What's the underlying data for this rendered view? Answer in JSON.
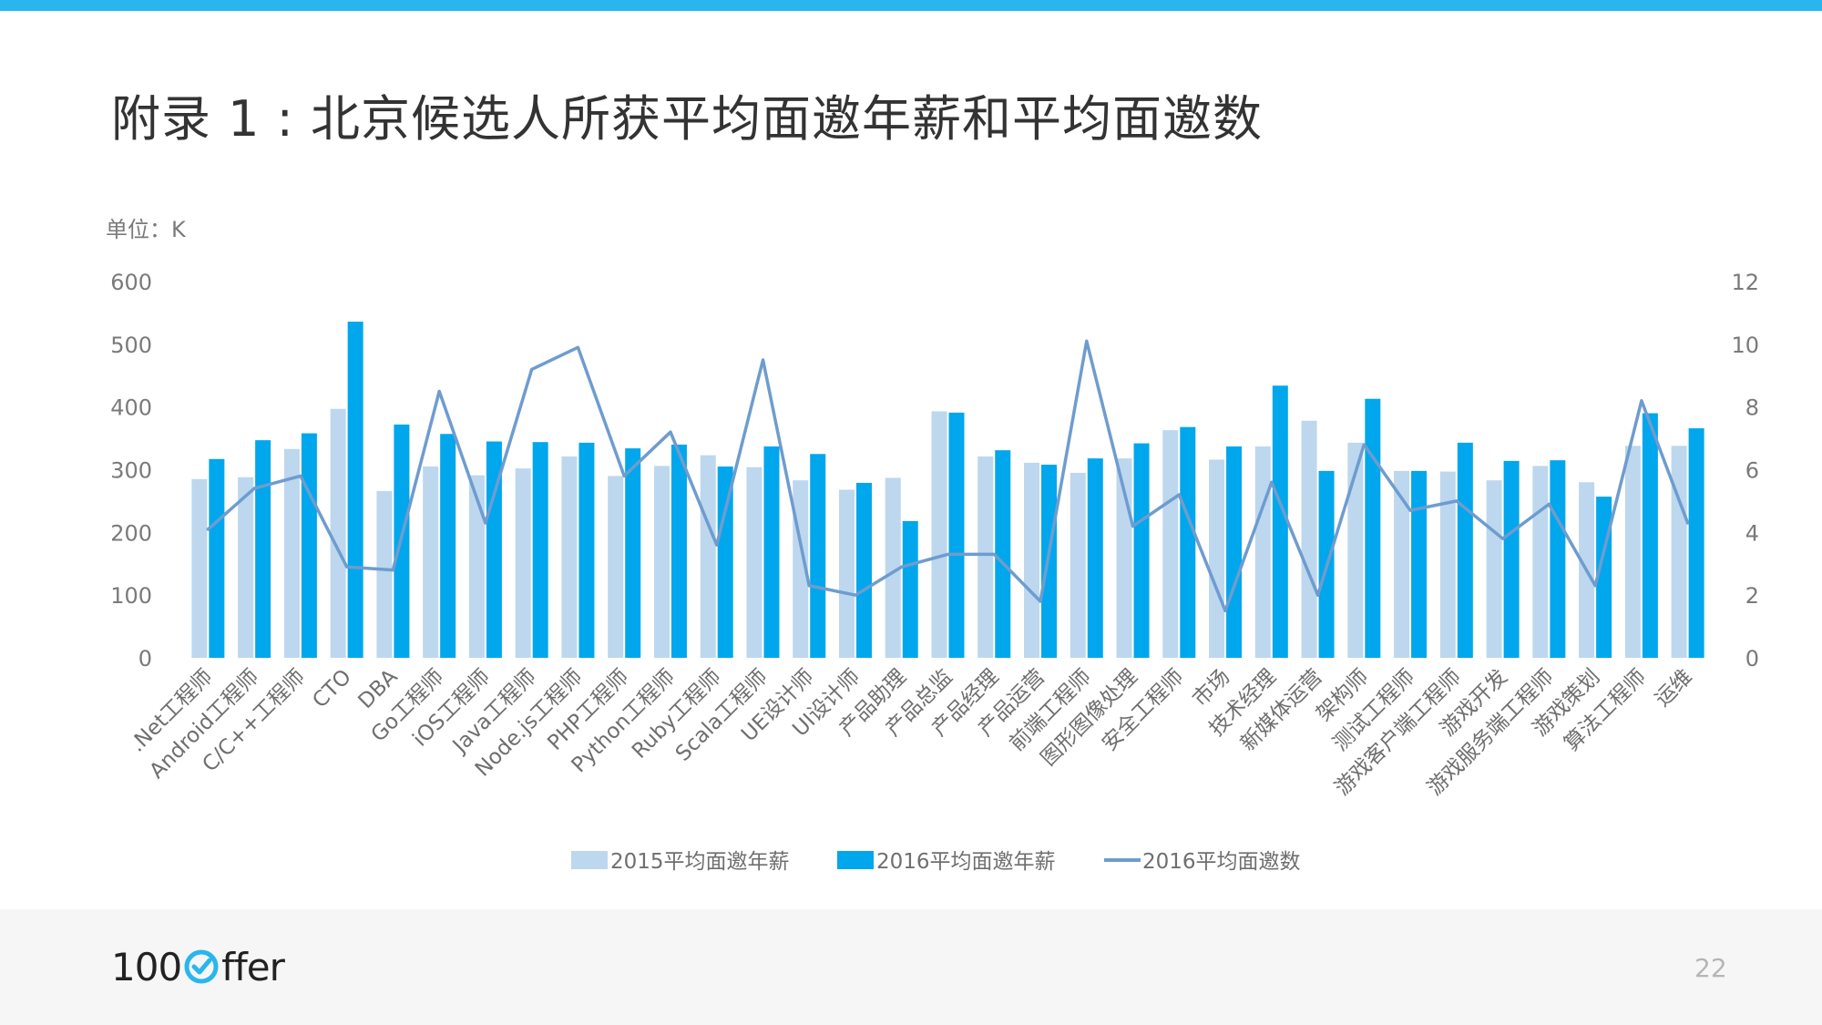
{
  "page": {
    "title": "附录 1 : 北京候选人所获平均面邀年薪和平均面邀数",
    "unit_label": "单位：K",
    "page_number": "22"
  },
  "logo": {
    "prefix": "100",
    "suffix": "ffer"
  },
  "colors": {
    "top_bar": "#29b6ee",
    "salary_2015": "#bdd7ee",
    "salary_2016": "#00a7ec",
    "invites_2016": "#6e9ccf",
    "axis_text": "#7a7a7a"
  },
  "chart_data": {
    "type": "bar",
    "title": "",
    "xlabel": "",
    "ylabel": "",
    "ylim": [
      0,
      600
    ],
    "y2lim": [
      0,
      12
    ],
    "y_ticks": [
      "0",
      "100",
      "200",
      "300",
      "400",
      "500",
      "600"
    ],
    "y2_ticks": [
      "0",
      "2",
      "4",
      "6",
      "8",
      "10",
      "12"
    ],
    "grid": false,
    "legend_position": "bottom",
    "categories": [
      ".Net工程师",
      "Android工程师",
      "C/C++工程师",
      "CTO",
      "DBA",
      "Go工程师",
      "iOS工程师",
      "Java工程师",
      "Node.js工程师",
      "PHP工程师",
      "Python工程师",
      "Ruby工程师",
      "Scala工程师",
      "UE设计师",
      "UI设计师",
      "产品助理",
      "产品总监",
      "产品经理",
      "产品运营",
      "前端工程师",
      "图形图像处理",
      "安全工程师",
      "市场",
      "技术经理",
      "新媒体运营",
      "架构师",
      "测试工程师",
      "游戏客户端工程师",
      "游戏开发",
      "游戏服务端工程师",
      "游戏策划",
      "算法工程师",
      "运维"
    ],
    "series": [
      {
        "name": "2015平均面邀年薪",
        "type": "bar",
        "axis": "left",
        "values": [
          285,
          288,
          333,
          397,
          266,
          305,
          291,
          302,
          321,
          290,
          306,
          323,
          304,
          283,
          268,
          287,
          393,
          321,
          311,
          295,
          318,
          363,
          316,
          337,
          378,
          343,
          298,
          297,
          283,
          306,
          280,
          338,
          338
        ]
      },
      {
        "name": "2016平均面邀年薪",
        "type": "bar",
        "axis": "left",
        "values": [
          317,
          347,
          358,
          536,
          372,
          357,
          345,
          344,
          343,
          334,
          340,
          305,
          337,
          325,
          279,
          218,
          391,
          331,
          308,
          318,
          342,
          368,
          337,
          434,
          298,
          413,
          298,
          343,
          314,
          315,
          257,
          390,
          366
        ]
      },
      {
        "name": "2016平均面邀数",
        "type": "line",
        "axis": "right",
        "values": [
          4.1,
          5.4,
          5.8,
          2.9,
          2.8,
          8.5,
          4.3,
          9.2,
          9.9,
          5.8,
          7.2,
          3.6,
          9.5,
          2.3,
          2.0,
          2.9,
          3.3,
          3.3,
          1.8,
          10.1,
          4.2,
          5.2,
          1.5,
          5.6,
          2.0,
          6.8,
          4.7,
          5.0,
          3.8,
          4.9,
          2.3,
          8.2,
          4.3
        ]
      }
    ]
  }
}
